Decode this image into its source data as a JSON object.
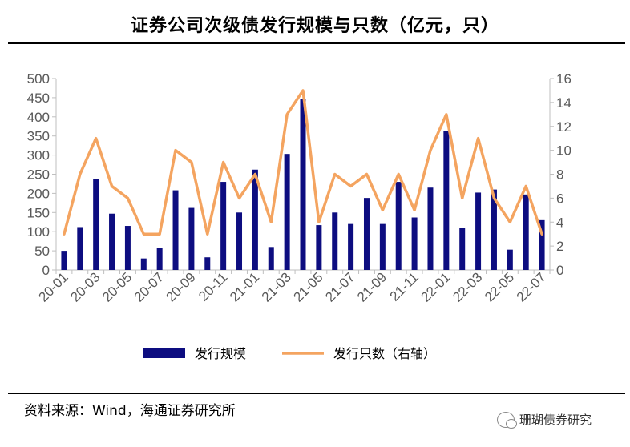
{
  "header": {
    "title": "证券公司次级债发行规模与只数（亿元，只）"
  },
  "footer": {
    "source": "资料来源：Wind，海通证券研究所",
    "watermark": "珊瑚债券研究"
  },
  "colors": {
    "bar": "#0d0d80",
    "line": "#f4a460",
    "axis": "#bfbfbf"
  },
  "chart_data": {
    "type": "bar",
    "title": "证券公司次级债发行规模与只数（亿元，只）",
    "categories": [
      "20-01",
      "20-02",
      "20-03",
      "20-04",
      "20-05",
      "20-06",
      "20-07",
      "20-08",
      "20-09",
      "20-10",
      "20-11",
      "20-12",
      "21-01",
      "21-02",
      "21-03",
      "21-04",
      "21-05",
      "21-06",
      "21-07",
      "21-08",
      "21-09",
      "21-10",
      "21-11",
      "21-12",
      "22-01",
      "22-02",
      "22-03",
      "22-04",
      "22-05",
      "22-06",
      "22-07"
    ],
    "x_tick_labels": [
      "20-01",
      "20-03",
      "20-05",
      "20-07",
      "20-09",
      "20-11",
      "21-01",
      "21-03",
      "21-05",
      "21-07",
      "21-09",
      "21-11",
      "22-01",
      "22-03",
      "22-05",
      "22-07"
    ],
    "series": [
      {
        "name": "发行规模",
        "type": "bar",
        "axis": "left",
        "values": [
          50,
          112,
          238,
          147,
          115,
          30,
          57,
          208,
          162,
          33,
          230,
          150,
          262,
          60,
          303,
          447,
          117,
          150,
          120,
          188,
          120,
          230,
          137,
          215,
          362,
          110,
          202,
          210,
          53,
          197,
          130
        ]
      },
      {
        "name": "发行只数（右轴）",
        "type": "line",
        "axis": "right",
        "values": [
          3,
          8,
          11,
          7,
          6,
          3,
          3,
          10,
          9,
          3,
          9,
          6,
          8,
          4,
          13,
          15,
          4,
          8,
          7,
          8,
          5,
          8,
          5,
          10,
          13,
          6,
          11,
          6,
          4,
          7,
          3
        ]
      }
    ],
    "y_left": {
      "min": 0,
      "max": 500,
      "ticks": [
        0,
        50,
        100,
        150,
        200,
        250,
        300,
        350,
        400,
        450,
        500
      ]
    },
    "y_right": {
      "min": 0,
      "max": 16,
      "ticks": [
        0,
        2,
        4,
        6,
        8,
        10,
        12,
        14,
        16
      ]
    },
    "legend": {
      "position": "bottom"
    },
    "grid": false
  }
}
